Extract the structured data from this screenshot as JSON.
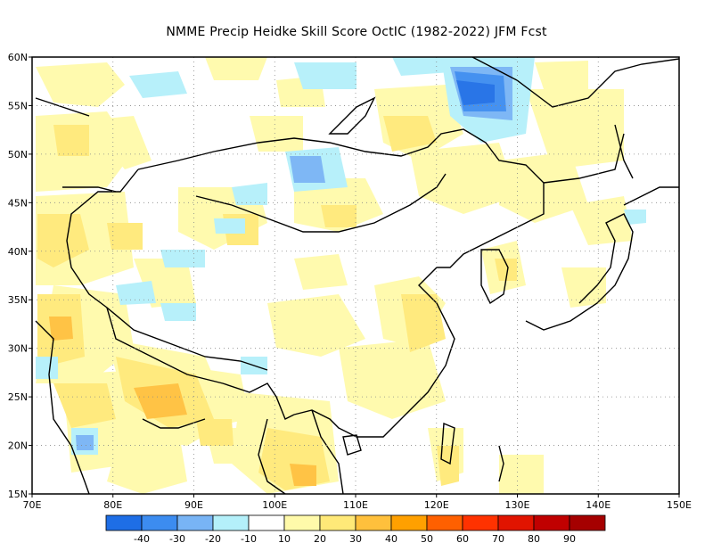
{
  "title": "NMME Precip Heidke Skill Score OctIC (1982-2022) JFM Fcst",
  "map": {
    "lon_range": [
      70,
      150
    ],
    "lat_range": [
      15,
      60
    ],
    "lon_ticks": [
      "70E",
      "80E",
      "90E",
      "100E",
      "110E",
      "120E",
      "130E",
      "140E",
      "150E"
    ],
    "lat_ticks": [
      "15N",
      "20N",
      "25N",
      "30N",
      "35N",
      "40N",
      "45N",
      "50N",
      "55N",
      "60N"
    ],
    "gridlines": "dotted",
    "features": [
      {
        "name": "negative-skill-cluster-siberia",
        "lon": 123.5,
        "lat": 56,
        "value": -35
      },
      {
        "name": "negative-skill-mongolia",
        "lon": 106,
        "lat": 48.5,
        "value": -25
      },
      {
        "name": "positive-skill-nepal",
        "lon": 86,
        "lat": 24.5,
        "value": 35
      },
      {
        "name": "positive-skill-pakistan",
        "lon": 73.5,
        "lat": 31.5,
        "value": 35
      },
      {
        "name": "negative-skill-bangladesh",
        "lon": 76.5,
        "lat": 20.5,
        "value": -30
      },
      {
        "name": "positive-skill-kazakhstan",
        "lon": 73,
        "lat": 41.5,
        "value": 25
      },
      {
        "name": "positive-skill-indochina",
        "lon": 104.5,
        "lat": 16,
        "value": 25
      }
    ]
  },
  "colorbar": {
    "colors": [
      "#1e6ee6",
      "#3c8cf0",
      "#78b4f5",
      "#b4f0fa",
      "#ffffff",
      "#fffaaa",
      "#ffe978",
      "#ffc03c",
      "#ffa000",
      "#ff6000",
      "#ff3200",
      "#e11400",
      "#c00000",
      "#a50000"
    ],
    "labels": [
      "-40",
      "-30",
      "-20",
      "-10",
      "10",
      "20",
      "30",
      "40",
      "50",
      "60",
      "70",
      "80",
      "90"
    ]
  }
}
